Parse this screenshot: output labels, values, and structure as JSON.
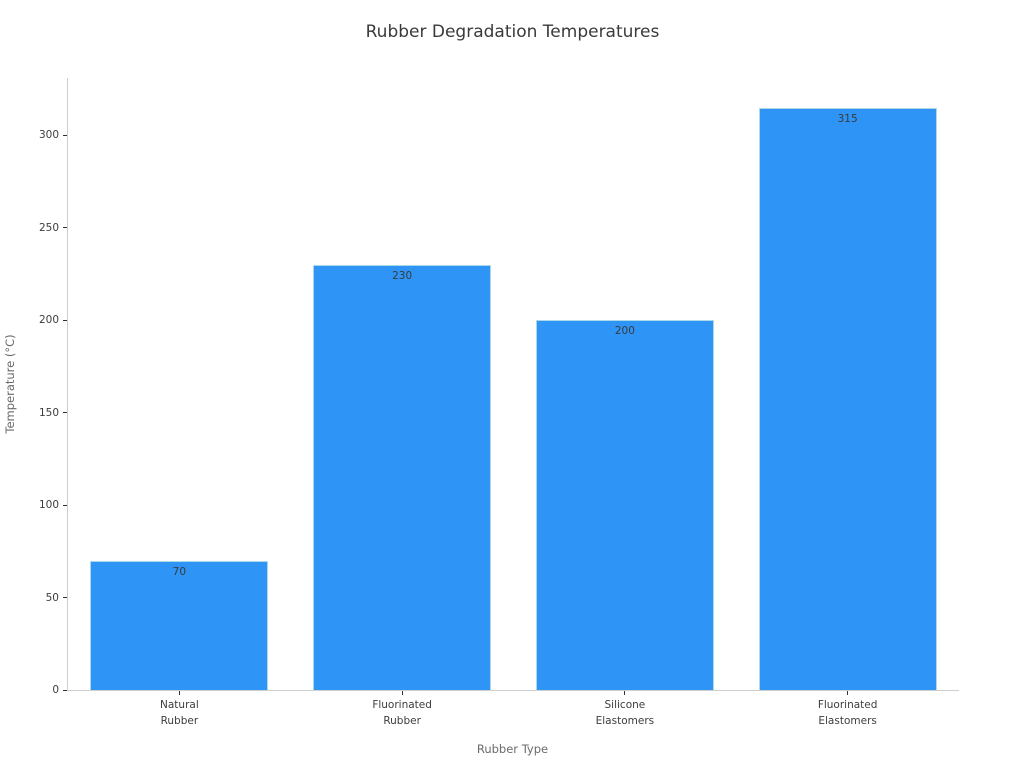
{
  "chart_data": {
    "type": "bar",
    "title": "Rubber Degradation Temperatures",
    "xlabel": "Rubber Type",
    "ylabel": "Temperature (°C)",
    "categories": [
      "Natural\nRubber",
      "Fluorinated\nRubber",
      "Silicone\nElastomers",
      "Fluorinated\nElastomers"
    ],
    "values": [
      70,
      230,
      200,
      315
    ],
    "bar_labels": [
      "70",
      "230",
      "200",
      "315"
    ],
    "yticks": [
      0,
      50,
      100,
      150,
      200,
      250,
      300
    ],
    "ylim": [
      0,
      331
    ],
    "bar_width_fraction": 0.8,
    "grid": false,
    "legend": null,
    "colors": {
      "bar_fill": "#2e94f5",
      "bar_edge": "#add8e6",
      "title_text": "#3a3a3a",
      "tick_text": "#3d3d3d",
      "axis_label_text": "#6b6b6b",
      "spine": "#cfcfcf",
      "tick_mark": "#333333",
      "background": "#ffffff"
    }
  }
}
